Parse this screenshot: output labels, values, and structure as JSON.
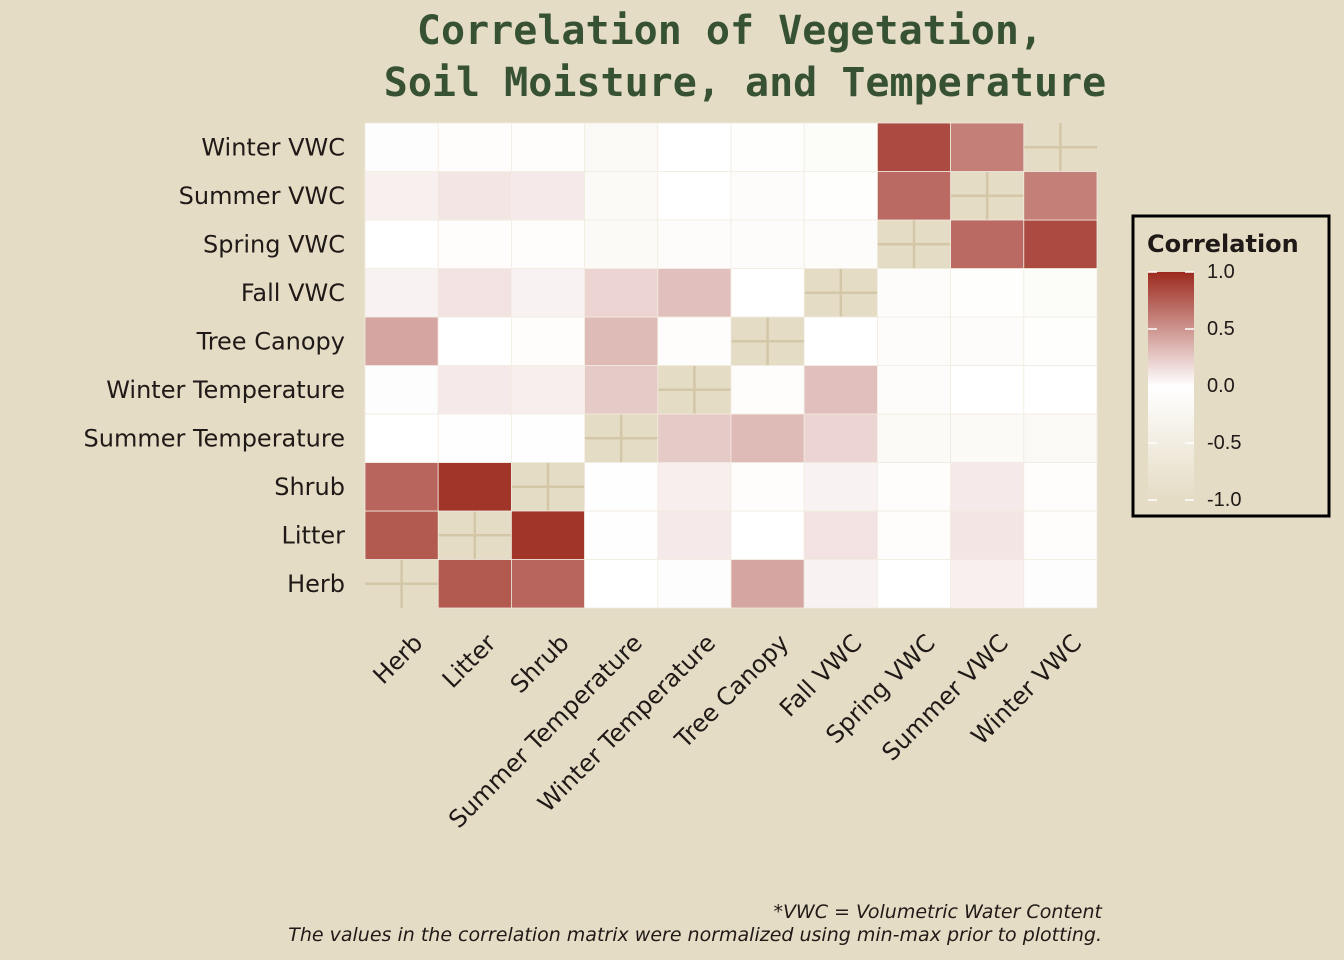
{
  "chart_data": {
    "type": "heatmap",
    "title": [
      "Correlation of Vegetation,",
      "Soil Moisture, and Temperature"
    ],
    "x_categories": [
      "Herb",
      "Litter",
      "Shrub",
      "Summer Temperature",
      "Winter Temperature",
      "Tree Canopy",
      "Fall VWC",
      "Spring VWC",
      "Summer VWC",
      "Winter VWC"
    ],
    "y_categories": [
      "Herb",
      "Litter",
      "Shrub",
      "Summer Temperature",
      "Winter Temperature",
      "Tree Canopy",
      "Fall VWC",
      "Spring VWC",
      "Summer VWC",
      "Winter VWC"
    ],
    "values": [
      [
        null,
        0.78,
        0.72,
        0.0,
        0.01,
        0.42,
        0.06,
        0.0,
        0.07,
        0.01
      ],
      [
        0.78,
        null,
        0.95,
        -0.02,
        0.1,
        0.0,
        0.13,
        -0.05,
        0.12,
        -0.05
      ],
      [
        0.72,
        0.95,
        null,
        -0.02,
        0.08,
        -0.05,
        0.06,
        -0.05,
        0.1,
        -0.05
      ],
      [
        0.0,
        -0.02,
        -0.02,
        null,
        0.25,
        0.32,
        0.2,
        -0.15,
        -0.15,
        -0.18
      ],
      [
        0.01,
        0.1,
        0.08,
        0.25,
        null,
        -0.05,
        0.3,
        -0.08,
        0.0,
        0.0
      ],
      [
        0.42,
        0.0,
        -0.05,
        0.32,
        -0.05,
        null,
        0.0,
        -0.08,
        -0.08,
        -0.03
      ],
      [
        0.06,
        0.13,
        0.06,
        0.2,
        0.3,
        0.0,
        null,
        -0.08,
        -0.03,
        -0.1
      ],
      [
        0.0,
        -0.05,
        -0.05,
        -0.15,
        -0.08,
        -0.08,
        -0.08,
        null,
        0.7,
        0.85
      ],
      [
        0.07,
        0.12,
        0.1,
        -0.15,
        0.0,
        -0.08,
        -0.03,
        0.7,
        null,
        0.6
      ],
      [
        0.01,
        -0.05,
        -0.05,
        -0.18,
        0.0,
        -0.03,
        -0.1,
        0.85,
        0.6,
        null
      ]
    ],
    "colorscale": {
      "min": -1.0,
      "max": 1.0,
      "low_color": "#E5DCC5",
      "mid_color": "#FFFFFF",
      "high_color": "#9C2A1E"
    },
    "legend": {
      "title": "Correlation",
      "tick_labels": [
        "1.0",
        "0.5",
        "0.0",
        "-0.5",
        "-1.0"
      ],
      "tick_values": [
        1.0,
        0.5,
        0.0,
        -0.5,
        -1.0
      ],
      "placement": "right"
    },
    "grid": true,
    "notes": [
      "*VWC = Volumetric Water Content",
      "The values in the correlation matrix were normalized using min-max prior to plotting."
    ]
  },
  "colors": {
    "background": "#E5DCC5",
    "title": "#375233",
    "text": "#1f1a17",
    "gridline": "#D4C7A8"
  }
}
